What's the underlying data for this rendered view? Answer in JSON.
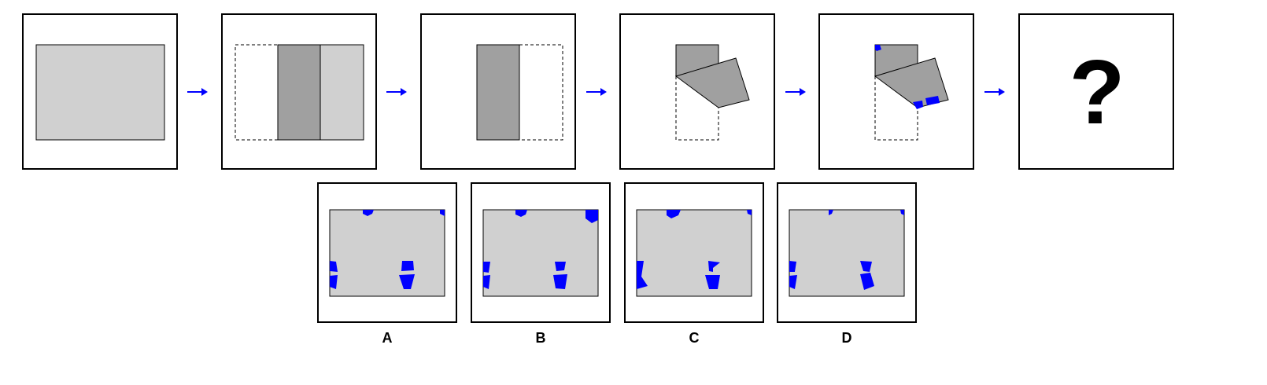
{
  "puzzle": {
    "question_mark": "?",
    "steps": [
      {
        "name": "step-1-unfolded-sheet"
      },
      {
        "name": "step-2-first-fold"
      },
      {
        "name": "step-3-folded-strip"
      },
      {
        "name": "step-4-corner-fold"
      },
      {
        "name": "step-5-punched-holes"
      },
      {
        "name": "step-6-unknown-result"
      }
    ]
  },
  "options": [
    {
      "label": "A"
    },
    {
      "label": "B"
    },
    {
      "label": "C"
    },
    {
      "label": "D"
    }
  ],
  "colors": {
    "paper": "#d0d0d0",
    "folded_paper": "#a0a0a0",
    "hole": "#0000ff",
    "arrow": "#0000ff",
    "outline": "#000000"
  }
}
